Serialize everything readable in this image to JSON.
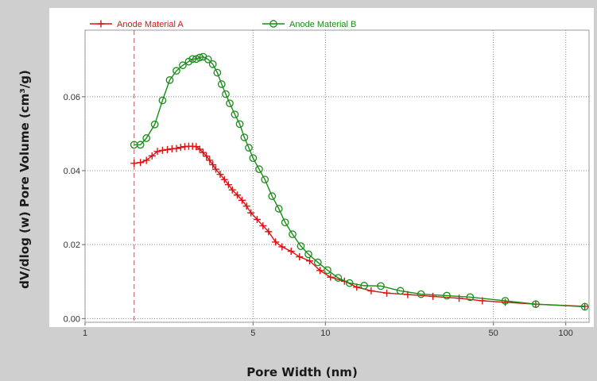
{
  "chart_data": {
    "type": "line",
    "title": "",
    "xlabel": "Pore Width (nm)",
    "ylabel": "dV/dlog (w) Pore Volume (cm³/g)",
    "x_scale": "log",
    "xlim": [
      1,
      125
    ],
    "ylim": [
      -0.001,
      0.078
    ],
    "x_ticks": [
      1,
      5,
      10,
      50,
      100
    ],
    "x_tick_labels": [
      "1",
      "5",
      "10",
      "50",
      "100"
    ],
    "y_ticks": [
      0.0,
      0.02,
      0.04,
      0.06
    ],
    "y_tick_labels": [
      "0.00",
      "0.02",
      "0.04",
      "0.06"
    ],
    "grid": true,
    "legend_position": "top",
    "reference_line_x": 1.6,
    "series": [
      {
        "name": "Anode Material A",
        "color": "#dd1111",
        "marker": "plus",
        "x": [
          1.6,
          1.7,
          1.8,
          1.9,
          2.0,
          2.1,
          2.2,
          2.3,
          2.4,
          2.5,
          2.6,
          2.7,
          2.8,
          2.9,
          3.0,
          3.1,
          3.2,
          3.3,
          3.4,
          3.5,
          3.65,
          3.8,
          3.95,
          4.1,
          4.3,
          4.5,
          4.7,
          4.9,
          5.2,
          5.5,
          5.8,
          6.2,
          6.6,
          7.2,
          7.8,
          8.6,
          9.5,
          10.5,
          12,
          13.5,
          15.5,
          18,
          22,
          28,
          36,
          45,
          56,
          75,
          120
        ],
        "y": [
          0.042,
          0.0422,
          0.0428,
          0.044,
          0.0452,
          0.0455,
          0.0457,
          0.0459,
          0.046,
          0.0463,
          0.0465,
          0.0466,
          0.0466,
          0.0465,
          0.0458,
          0.0449,
          0.0439,
          0.0428,
          0.0416,
          0.0404,
          0.039,
          0.0376,
          0.0362,
          0.0348,
          0.0334,
          0.032,
          0.0304,
          0.0286,
          0.0268,
          0.0251,
          0.0235,
          0.0207,
          0.0194,
          0.0182,
          0.0167,
          0.0156,
          0.013,
          0.0112,
          0.0101,
          0.0085,
          0.0075,
          0.0069,
          0.0065,
          0.006,
          0.0055,
          0.0048,
          0.0044,
          0.0039,
          0.0033
        ]
      },
      {
        "name": "Anode Material B",
        "color": "#1a8c1a",
        "marker": "circle",
        "x": [
          1.6,
          1.7,
          1.8,
          1.95,
          2.1,
          2.25,
          2.4,
          2.55,
          2.7,
          2.8,
          2.9,
          3.0,
          3.1,
          3.25,
          3.4,
          3.55,
          3.7,
          3.85,
          4.0,
          4.2,
          4.4,
          4.6,
          4.8,
          5.0,
          5.3,
          5.6,
          6.0,
          6.4,
          6.8,
          7.3,
          7.9,
          8.5,
          9.3,
          10.2,
          11.3,
          12.6,
          14.5,
          17,
          20.5,
          25,
          32,
          40,
          56,
          75,
          120
        ],
        "y": [
          0.047,
          0.047,
          0.0488,
          0.0525,
          0.059,
          0.0645,
          0.067,
          0.0685,
          0.0695,
          0.0702,
          0.0702,
          0.0706,
          0.0708,
          0.0701,
          0.0688,
          0.0665,
          0.0634,
          0.0607,
          0.0582,
          0.0552,
          0.0526,
          0.049,
          0.0462,
          0.0434,
          0.0404,
          0.0376,
          0.0331,
          0.0297,
          0.026,
          0.0228,
          0.0196,
          0.0174,
          0.0152,
          0.0131,
          0.011,
          0.0096,
          0.0089,
          0.0088,
          0.0075,
          0.0066,
          0.0062,
          0.0058,
          0.0048,
          0.0039,
          0.0032
        ]
      }
    ]
  }
}
